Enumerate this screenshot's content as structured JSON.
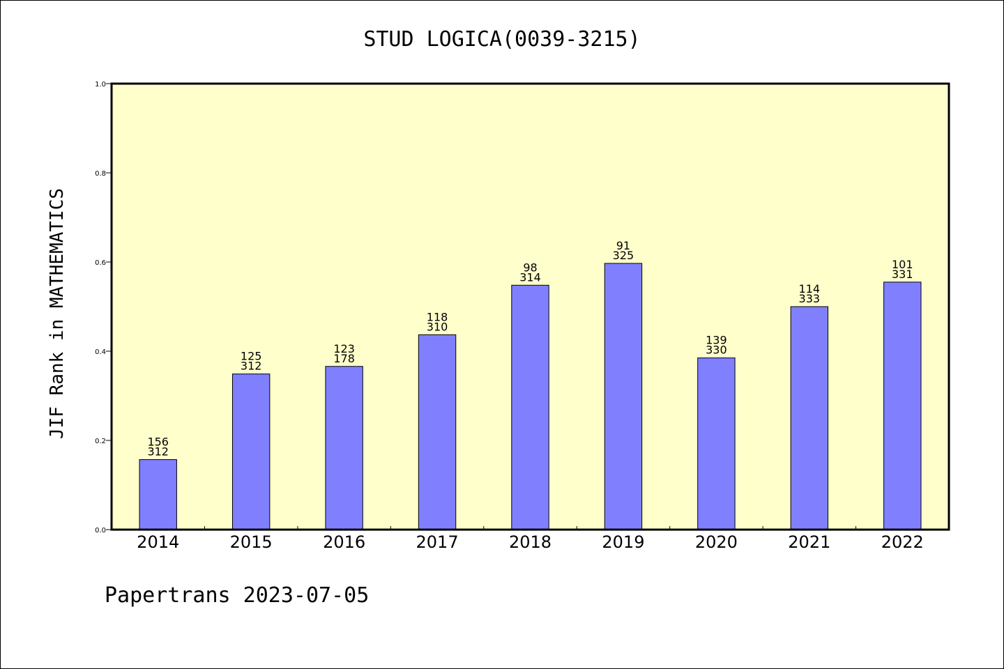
{
  "chart_data": {
    "type": "bar",
    "title": "STUD LOGICA(0039-3215)",
    "ylabel": "JIF Rank in MATHEMATICS",
    "xlabel": "",
    "categories": [
      "2014",
      "2015",
      "2016",
      "2017",
      "2018",
      "2019",
      "2020",
      "2021",
      "2022"
    ],
    "values": [
      0.157,
      0.349,
      0.366,
      0.437,
      0.548,
      0.597,
      0.385,
      0.5,
      0.555
    ],
    "rank": [
      "156",
      "125",
      "123",
      "118",
      "98",
      "91",
      "139",
      "114",
      "101"
    ],
    "total": [
      "312",
      "312",
      "178",
      "310",
      "314",
      "325",
      "330",
      "333",
      "331"
    ],
    "ylim": [
      0,
      1
    ],
    "yticks": [
      "0.0",
      "0.2",
      "0.4",
      "0.6",
      "0.8",
      "1.0"
    ],
    "grid": false,
    "colors": {
      "plot_background": "#ffffcc",
      "bar_fill": "#8080ff",
      "bar_stroke": "#000000"
    }
  },
  "footer": "Papertrans 2023-07-05"
}
